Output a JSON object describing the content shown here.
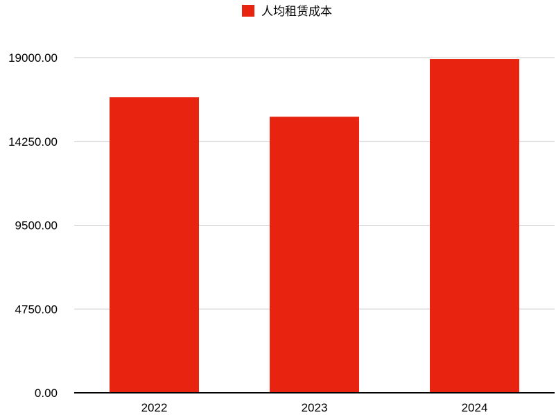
{
  "chart_data": {
    "type": "bar",
    "title": "",
    "xlabel": "",
    "ylabel": "",
    "categories": [
      "2022",
      "2023",
      "2024"
    ],
    "series": [
      {
        "name": "人均租赁成本",
        "values": [
          16750,
          15650,
          18920
        ],
        "color": "#e8230f"
      }
    ],
    "yticks": [
      "0.00",
      "4750.00",
      "9500.00",
      "14250.00",
      "19000.00"
    ],
    "ylim": [
      0,
      19000
    ],
    "grid": true,
    "legend_position": "top-center"
  }
}
